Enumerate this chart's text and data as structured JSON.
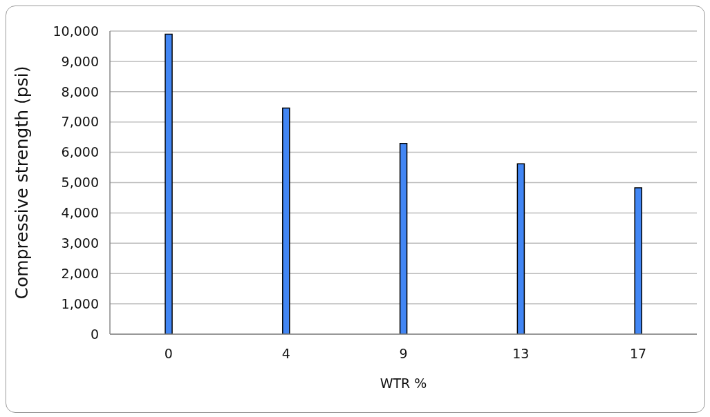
{
  "chart_data": {
    "type": "bar",
    "xlabel": "WTR %",
    "ylabel": "Compressive strength (psi)",
    "categories": [
      "0",
      "4",
      "9",
      "13",
      "17"
    ],
    "series": [
      {
        "color": "#4286f4",
        "values": [
          9900,
          7460,
          6290,
          5620,
          4830
        ]
      }
    ],
    "ylim": [
      0,
      10000
    ],
    "yticks": [
      {
        "value": 0,
        "label": "0"
      },
      {
        "value": 1000,
        "label": "1,000"
      },
      {
        "value": 2000,
        "label": "2,000"
      },
      {
        "value": 3000,
        "label": "3,000"
      },
      {
        "value": 4000,
        "label": "4,000"
      },
      {
        "value": 5000,
        "label": "5,000"
      },
      {
        "value": 6000,
        "label": "6,000"
      },
      {
        "value": 7000,
        "label": "7,000"
      },
      {
        "value": 8000,
        "label": "8,000"
      },
      {
        "value": 9000,
        "label": "9,000"
      },
      {
        "value": 10000,
        "label": "10,000"
      }
    ],
    "grid": "y",
    "legend": false
  }
}
